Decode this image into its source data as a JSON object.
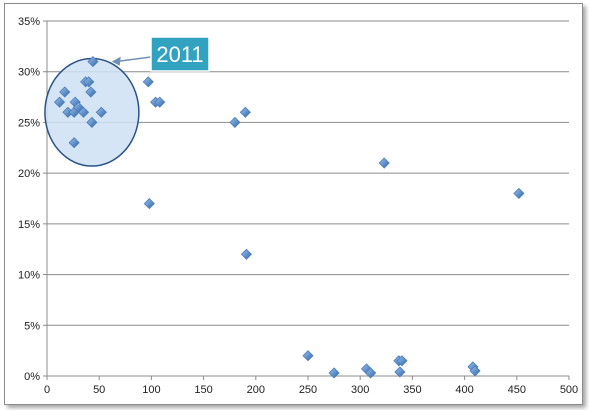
{
  "chart_data": {
    "type": "scatter",
    "title": "",
    "xlabel": "",
    "ylabel": "",
    "xlim": [
      0,
      500
    ],
    "ylim": [
      0,
      35
    ],
    "x_ticks": [
      "0",
      "50",
      "100",
      "150",
      "200",
      "250",
      "300",
      "350",
      "400",
      "450",
      "500"
    ],
    "y_ticks": [
      "0%",
      "5%",
      "10%",
      "15%",
      "20%",
      "25%",
      "30%",
      "35%"
    ],
    "grid": "horizontal",
    "marker_color": "#4a7ebb",
    "points": [
      {
        "x": 12,
        "y": 27
      },
      {
        "x": 17,
        "y": 28
      },
      {
        "x": 20,
        "y": 26
      },
      {
        "x": 26,
        "y": 26
      },
      {
        "x": 27,
        "y": 27
      },
      {
        "x": 26,
        "y": 23
      },
      {
        "x": 30,
        "y": 26.5
      },
      {
        "x": 35,
        "y": 26
      },
      {
        "x": 37,
        "y": 29
      },
      {
        "x": 40,
        "y": 29
      },
      {
        "x": 42,
        "y": 28
      },
      {
        "x": 43,
        "y": 25
      },
      {
        "x": 44,
        "y": 31
      },
      {
        "x": 52,
        "y": 26
      },
      {
        "x": 97,
        "y": 29
      },
      {
        "x": 98,
        "y": 17
      },
      {
        "x": 104,
        "y": 27
      },
      {
        "x": 108,
        "y": 27
      },
      {
        "x": 180,
        "y": 25
      },
      {
        "x": 190,
        "y": 26
      },
      {
        "x": 191,
        "y": 12
      },
      {
        "x": 250,
        "y": 2
      },
      {
        "x": 275,
        "y": 0.3
      },
      {
        "x": 306,
        "y": 0.7
      },
      {
        "x": 310,
        "y": 0.3
      },
      {
        "x": 323,
        "y": 21
      },
      {
        "x": 337,
        "y": 1.5
      },
      {
        "x": 338,
        "y": 0.4
      },
      {
        "x": 340,
        "y": 1.5
      },
      {
        "x": 408,
        "y": 0.9
      },
      {
        "x": 410,
        "y": 0.5
      },
      {
        "x": 452,
        "y": 18
      }
    ],
    "annotation": {
      "label": "2011",
      "label_bg": "#31a2c0",
      "ellipse_center": {
        "x": 43,
        "y": 26
      },
      "ellipse_radius": {
        "x": 45,
        "y": 5.3
      },
      "arrow_tip": {
        "x": 62,
        "y": 31
      }
    }
  }
}
